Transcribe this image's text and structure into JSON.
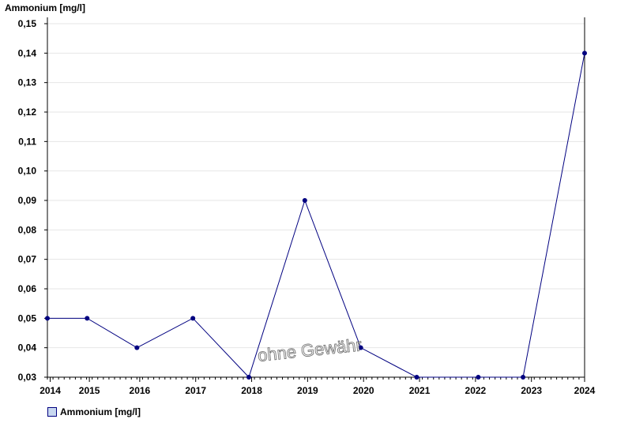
{
  "chart_data": {
    "type": "line",
    "ylabel": "Ammonium [mg/l]",
    "xlabel": "",
    "title": "",
    "x": [
      2014.0,
      2014.71,
      2015.6,
      2016.6,
      2017.6,
      2018.6,
      2019.6,
      2020.6,
      2021.7,
      2022.5,
      2023.6
    ],
    "series": [
      {
        "name": "Ammonium [mg/l]",
        "values": [
          0.05,
          0.05,
          0.04,
          0.05,
          0.03,
          0.09,
          0.04,
          0.03,
          0.03,
          0.03,
          0.14
        ],
        "color": "#000080"
      }
    ],
    "xlim": [
      2014.0,
      2023.6
    ],
    "ylim": [
      0.03,
      0.15
    ],
    "x_ticks": [
      "2014",
      "2015",
      "2016",
      "2017",
      "2018",
      "2019",
      "2020",
      "2021",
      "2022",
      "2023",
      "2024"
    ],
    "x_tick_positions": [
      2014.05,
      2014.75,
      2015.65,
      2016.65,
      2017.65,
      2018.65,
      2019.65,
      2020.65,
      2021.65,
      2022.65,
      2023.6
    ],
    "y_ticks": [
      "0,03",
      "0,04",
      "0,05",
      "0,06",
      "0,07",
      "0,08",
      "0,09",
      "0,10",
      "0,11",
      "0,12",
      "0,13",
      "0,14",
      "0,15"
    ],
    "y_tick_values": [
      0.03,
      0.04,
      0.05,
      0.06,
      0.07,
      0.08,
      0.09,
      0.1,
      0.11,
      0.12,
      0.13,
      0.14,
      0.15
    ],
    "grid": true,
    "legend_position": "bottom-left",
    "watermark": "ohne Gewähr",
    "colors": {
      "line": "#000080",
      "marker": "#000080",
      "grid": "#e6e6e6",
      "axis": "#000000"
    }
  }
}
